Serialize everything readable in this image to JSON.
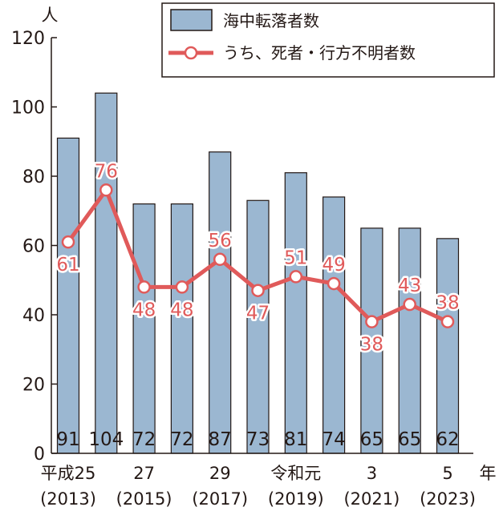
{
  "colors": {
    "bar_fill": "#9bb7d1",
    "bar_stroke": "#231815",
    "line": "#e05a5a",
    "axis": "#231815",
    "marker_fill": "#ffffff"
  },
  "chart_data": {
    "type": "bar+line",
    "title": "",
    "y_unit": "人",
    "x_unit": "年",
    "ylim": [
      0,
      120
    ],
    "yticks": [
      0,
      20,
      40,
      60,
      80,
      100,
      120
    ],
    "grid": false,
    "legend_position": "top-right",
    "categories": [
      "2013",
      "2014",
      "2015",
      "2016",
      "2017",
      "2018",
      "2019",
      "2020",
      "2021",
      "2022",
      "2023"
    ],
    "x_tick_labels": [
      {
        "index": 0,
        "line1": "平成25",
        "line2": "(2013)"
      },
      {
        "index": 2,
        "line1": "27",
        "line2": "(2015)"
      },
      {
        "index": 4,
        "line1": "29",
        "line2": "(2017)"
      },
      {
        "index": 6,
        "line1": "令和元",
        "line2": "(2019)"
      },
      {
        "index": 8,
        "line1": "3",
        "line2": "(2021)"
      },
      {
        "index": 10,
        "line1": "5",
        "line2": "(2023)"
      }
    ],
    "series": [
      {
        "name": "海中転落者数",
        "type": "bar",
        "values": [
          91,
          104,
          72,
          72,
          87,
          73,
          81,
          74,
          65,
          65,
          62
        ]
      },
      {
        "name": "うち、死者・行方不明者数",
        "type": "line",
        "values": [
          61,
          76,
          48,
          48,
          56,
          47,
          51,
          49,
          38,
          43,
          38
        ]
      }
    ]
  }
}
